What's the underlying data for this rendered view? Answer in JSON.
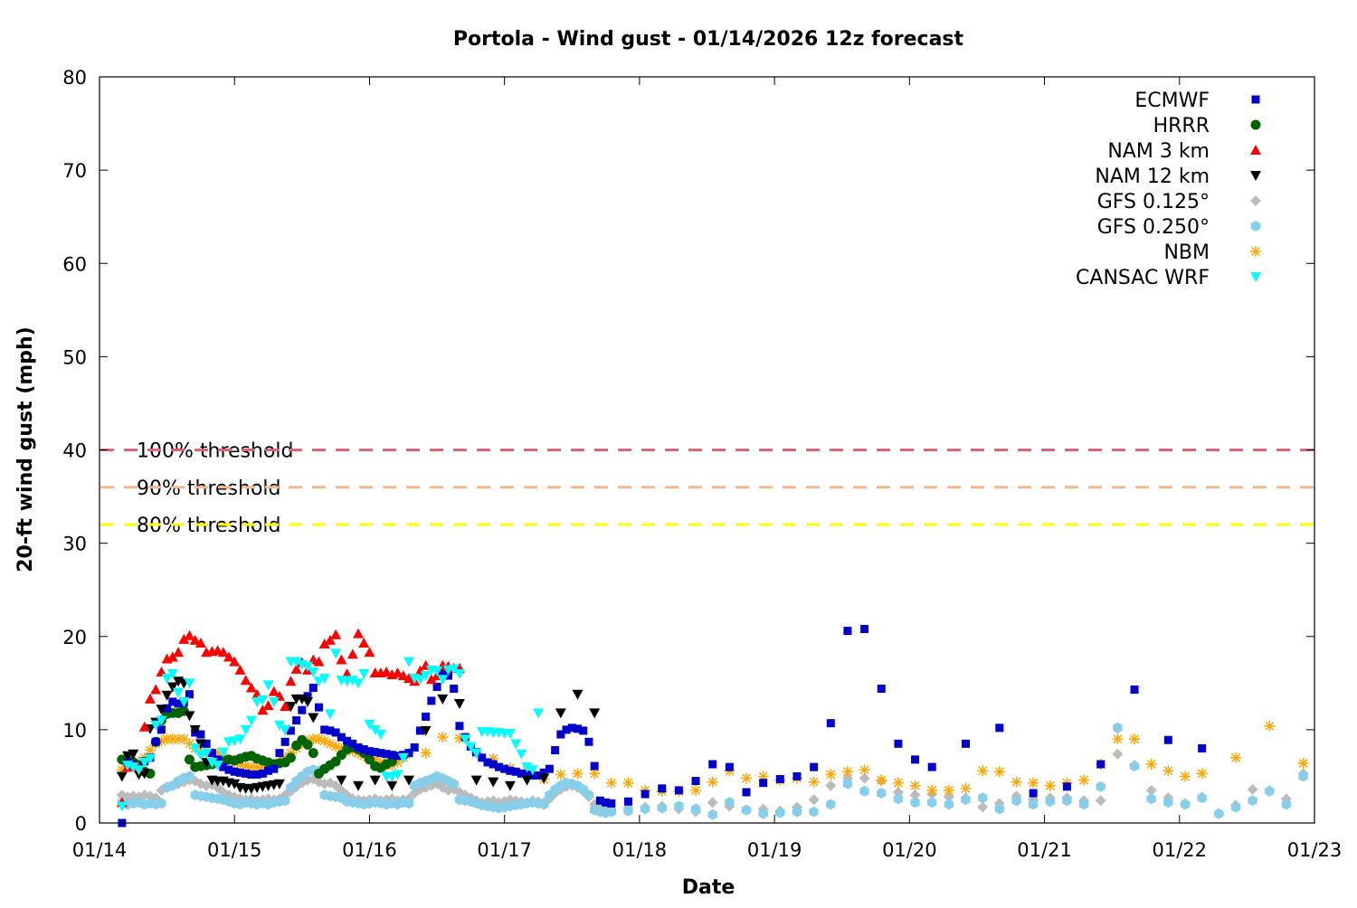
{
  "chart_data": {
    "type": "scatter",
    "title": "Portola - Wind gust - 01/14/2026 12z forecast",
    "xlabel": "Date",
    "ylabel": "20-ft wind gust (mph)",
    "xlim": [
      "01/14 00",
      "01/23 00"
    ],
    "ylim": [
      0,
      80
    ],
    "x_tick_labels": [
      "01/14",
      "01/15",
      "01/16",
      "01/17",
      "01/18",
      "01/19",
      "01/20",
      "01/21",
      "01/22",
      "01/23"
    ],
    "y_tick_labels": [
      "0",
      "10",
      "20",
      "30",
      "40",
      "50",
      "60",
      "70",
      "80"
    ],
    "legend_position": "top-right",
    "grid": false,
    "thresholds": [
      {
        "label": "100% threshold",
        "value": 40,
        "color": "#e06377"
      },
      {
        "label": "90% threshold",
        "value": 36,
        "color": "#f8b88b"
      },
      {
        "label": "80% threshold",
        "value": 32,
        "color": "#ffff00"
      }
    ],
    "series": [
      {
        "name": "ECMWF",
        "marker": "square",
        "color": "#0000cc",
        "segments": [
          {
            "start": "01/14 04",
            "step_hours": 1,
            "values": [
              0,
              6.5,
              6.3,
              6,
              6.6,
              7,
              8.7,
              10,
              12.3,
              13,
              12.8,
              12.9,
              13.8,
              9.7,
              9.5,
              8.5,
              7.5,
              6.8,
              6,
              5.7,
              5.5,
              5.4,
              5.3,
              5.2,
              5.2,
              5.3,
              5.6,
              5.8,
              7.5,
              8.7,
              9.9,
              11,
              12.1,
              13.6,
              14.5,
              12.4,
              10,
              9.9,
              9.7,
              9.2,
              8.8,
              8.5,
              8.1,
              7.9,
              7.7,
              7.6,
              7.5,
              7.4,
              7.3,
              7.2,
              7.3,
              7.5,
              8.1,
              9.9,
              11.4,
              13.1,
              14.6,
              16,
              15.8,
              14.4,
              10.4,
              9.2,
              8.2,
              7.6,
              7,
              6.5,
              6.3,
              6,
              5.8,
              5.6,
              5.5,
              5.3,
              5.2,
              5.1,
              5.1,
              5.4,
              5.8,
              7.8,
              9.5,
              10,
              10.2,
              10.1,
              9.9,
              8.7,
              6.1,
              2.4,
              2.2,
              2.1
            ]
          },
          {
            "start": "01/17 22",
            "step_hours": 3,
            "values": [
              2.3,
              3.1,
              3.7,
              3.5,
              4.5,
              6.3,
              6,
              3.3,
              4.3,
              4.7,
              5,
              6,
              10.7,
              20.6,
              20.8,
              14.4,
              8.5,
              6.8,
              6
            ]
          },
          {
            "start": "01/20 10",
            "step_hours": 6,
            "values": [
              8.5,
              10.2,
              3.2,
              3.9,
              6.3,
              14.3,
              8.9,
              8
            ]
          }
        ]
      },
      {
        "name": "HRRR",
        "marker": "circle",
        "color": "#006400",
        "segments": [
          {
            "start": "01/14 04",
            "step_hours": 1,
            "values": [
              6.8,
              6.8,
              6.5,
              6.2,
              5.5,
              5.3,
              8.7,
              11,
              11.7,
              11.8,
              11.8,
              12,
              6.8,
              6,
              6.1,
              6.2,
              6.3,
              6.4,
              6.7,
              6.8,
              6.7,
              6.9,
              7.1,
              7.2,
              6.9,
              6.7,
              6.5,
              6.3,
              6.4,
              6.5,
              7,
              8.3,
              8.9,
              8.4,
              7.5,
              5.3,
              5.8,
              6.2,
              6.6,
              7.3,
              7.9,
              8.1,
              7.9,
              7.5,
              6.8,
              6.1,
              5.9,
              6.3,
              6.6
            ]
          }
        ]
      },
      {
        "name": "NAM 3 km",
        "marker": "triangle-up",
        "color": "#ff0000",
        "segments": [
          {
            "start": "01/14 04",
            "step_hours": 1,
            "values": [
              2.2,
              6,
              6,
              6,
              10.3,
              13.3,
              14.3,
              16.2,
              17.6,
              17.8,
              18.3,
              19.7,
              20.1,
              19.6,
              19.3,
              18.3,
              18.4,
              18.5,
              18.3,
              17.8,
              17.3,
              16.4,
              15.3,
              14.5,
              13.8,
              12.1,
              12.6,
              14.1,
              13.6,
              12.5,
              15.2,
              16.5,
              17.2,
              16.4,
              17.5,
              17.3,
              19.2,
              19.6,
              20.2,
              17.5,
              16,
              18.1,
              20.3,
              19.3,
              18.3,
              16.1,
              16.1,
              16.2,
              15.9,
              16.1,
              15.8,
              15.5,
              15.2,
              16.3,
              16.9,
              15.4,
              15.8,
              16.9,
              16.8,
              16.6,
              16.6
            ]
          }
        ]
      },
      {
        "name": "NAM 12 km",
        "marker": "triangle-down",
        "color": "#000000",
        "segments": [
          {
            "start": "01/14 04",
            "step_hours": 1,
            "values": [
              5,
              7.2,
              7.4,
              5.2,
              5.3,
              10.1,
              10.8,
              12.2,
              13.7,
              14.6,
              15.2,
              15,
              11.5,
              10,
              8.5,
              6.5,
              4.6,
              4.5,
              4.5,
              4.3,
              4.2,
              3.8,
              3.7,
              3.7,
              3.8,
              3.9,
              4,
              4.1,
              4.2,
              10,
              12.5,
              13.3,
              13.3,
              13,
              11.3
            ]
          },
          {
            "start": "01/15 19",
            "step_hours": 3,
            "values": [
              4.6,
              4,
              4.6,
              4,
              4.6,
              9.9,
              13.3,
              12.8,
              4.6,
              4.4,
              4,
              4.6,
              4.8,
              11.8,
              13.8,
              11.8
            ]
          }
        ]
      },
      {
        "name": "GFS 0.125°",
        "marker": "diamond",
        "color": "#bbbbbb",
        "segments": [
          {
            "start": "01/14 04",
            "step_hours": 1,
            "values": [
              3,
              2.8,
              2.9,
              2.8,
              3,
              2.9,
              2.7,
              3.5,
              3.8,
              4,
              4.2,
              4.4,
              4.6,
              4.5,
              4.2,
              4,
              4.1,
              3.8,
              3.3,
              3,
              2.8,
              2.6,
              2.5,
              2.6,
              2.4,
              2.5,
              2.6,
              2.5,
              2.6,
              3,
              3.4,
              3.9,
              4.3,
              4.6,
              4.7,
              4.4,
              4.2,
              4.3,
              4,
              3.5,
              3,
              2.6,
              2.5,
              2.4,
              2.5,
              2.6,
              2.4,
              2.5,
              2.6,
              2.4,
              2.5,
              2.6,
              3.2,
              3.6,
              3.8,
              4,
              4.2,
              3.8,
              3.5,
              3.6,
              3.3,
              3,
              2.7,
              2.4,
              2.2,
              2.3,
              2.4,
              2.2,
              2.3,
              2.5,
              2.4,
              2.3,
              2.2,
              2.4,
              2.3,
              2.2,
              2.6,
              3.2,
              3.6,
              3.9,
              4,
              3.8,
              3.4,
              2.8,
              2,
              1.7,
              1.6,
              1.5
            ]
          },
          {
            "start": "01/17 22",
            "step_hours": 3,
            "values": [
              1.6,
              1.7,
              1.8,
              1.5,
              1.2,
              2.2,
              1.8,
              1.4,
              1.5,
              1.3,
              1.7,
              2.5,
              4,
              4.8,
              4.8,
              4.5,
              3.3,
              3,
              3.1,
              2.8,
              2.7,
              1.7,
              2.1,
              2.9,
              2.5,
              2.7,
              2.7,
              2.4,
              2.4,
              7.4,
              6.2,
              3.5,
              2.7,
              2.1,
              2.8,
              1,
              1.9,
              3.6,
              3.5,
              2.6,
              5.3
            ]
          }
        ]
      },
      {
        "name": "GFS 0.250°",
        "marker": "hexagon",
        "color": "#87ceeb",
        "segments": [
          {
            "start": "01/14 04",
            "step_hours": 1,
            "values": [
              2.2,
              2,
              2.1,
              2.2,
              2,
              2.1,
              2,
              2.1,
              3.8,
              4,
              4.5,
              4.8,
              5,
              3,
              2.9,
              2.8,
              2.7,
              2.6,
              2.5,
              2.3,
              2.1,
              2,
              2.2,
              2.1,
              2,
              2.1,
              2,
              2.2,
              2.3,
              2.4,
              3.8,
              4.5,
              5,
              5.5,
              5.7,
              5.6,
              3,
              2.9,
              2.8,
              2.7,
              2.3,
              2.2,
              2.1,
              2,
              2.1,
              2.2,
              2.1,
              2,
              2.1,
              2,
              2.2,
              2.1,
              4,
              4.3,
              4.5,
              4.7,
              5,
              4.8,
              4.5,
              4.2,
              2.5,
              2.4,
              2.3,
              2.1,
              1.9,
              1.8,
              1.7,
              1.6,
              1.7,
              1.8,
              1.9,
              2,
              2.1,
              2.2,
              2.1,
              2,
              3,
              3.6,
              4,
              4.3,
              4.2,
              4,
              3.6,
              3,
              1.4,
              1.2,
              1.1,
              1.2
            ]
          },
          {
            "start": "01/17 22",
            "step_hours": 3,
            "values": [
              1.3,
              1.5,
              1.6,
              1.8,
              1.5,
              0.9,
              2.2,
              1.4,
              1,
              1.1,
              1.2,
              1.2,
              2,
              4.2,
              3.4,
              3.2,
              2.6,
              2.2,
              2.2,
              2,
              2.5,
              2.7,
              1.5,
              2.4,
              2,
              2.3,
              2.4,
              2,
              3.9,
              10.2,
              6.1,
              2.6,
              2.2,
              2,
              2.7,
              1,
              1.7,
              2.4,
              3.4,
              2,
              5
            ]
          }
        ]
      },
      {
        "name": "NBM",
        "marker": "star",
        "color": "#ffa500",
        "segments": [
          {
            "start": "01/14 04",
            "step_hours": 1,
            "values": [
              5.7,
              6,
              6.3,
              6.6,
              7,
              7.8,
              8.5,
              8.8,
              9,
              9,
              9,
              9,
              8.5,
              8,
              7.7,
              7.5,
              7.5,
              7.5,
              7,
              6.7,
              6.5,
              6.3,
              6.1,
              6,
              6,
              6,
              6,
              6.2,
              6.5,
              7,
              7.5,
              8,
              8.5,
              8.8,
              9,
              9,
              8.8,
              8.5,
              8.2,
              8,
              7.8,
              7.7,
              7.5,
              7.2,
              7,
              6.8,
              6.5,
              6.2,
              6.2,
              6.5,
              7,
              7.5
            ]
          },
          {
            "start": "01/16 10",
            "step_hours": 3,
            "values": [
              7.5,
              9.2,
              9.1,
              7.5,
              6.9,
              5.9,
              5.6,
              4.7,
              5.2,
              5.3,
              5.3,
              4.3,
              4.3,
              3.5,
              3.4,
              3.4,
              3.5,
              4.4,
              5.6,
              4.8,
              5,
              4.6,
              4.8,
              4.4,
              5.2,
              5.5,
              5.7,
              4.6,
              4.3,
              4,
              3.5,
              3.5,
              3.7,
              5.6,
              5.5,
              4.4,
              4.3,
              4,
              4.3,
              4.6,
              6.3,
              9,
              9,
              6.3,
              5.6,
              5,
              5.3
            ]
          },
          {
            "start": "01/22 10",
            "step_hours": 6,
            "values": [
              7,
              10.4,
              6.4
            ]
          }
        ]
      },
      {
        "name": "CANSAC WRF",
        "marker": "triangle-down",
        "color": "#00ffff",
        "segments": [
          {
            "start": "01/14 04",
            "step_hours": 1,
            "values": [
              1.8,
              6.2,
              6,
              5.7,
              6.5,
              6.9,
              10.5,
              11,
              15.5,
              16,
              14,
              13,
              15,
              8,
              7.3,
              7.5,
              6.5,
              6.2,
              7.6,
              8.7,
              8.8,
              9,
              10,
              11,
              13,
              13.2,
              14.8,
              13,
              10.5,
              10,
              17.3,
              17.3,
              17,
              16.8,
              16.2,
              15.2,
              15.5,
              11.7,
              18.2,
              15.3,
              15.2,
              15.3,
              15,
              16,
              10.6,
              10,
              9.5,
              5,
              5,
              5.2,
              7,
              17.3,
              15.5,
              15.4,
              15.8,
              16.4,
              16.3,
              15.4,
              16.4,
              16.5,
              16,
              9,
              8.2,
              7.5,
              9.8,
              9.8,
              9.7,
              9.7,
              9.6,
              9.6,
              8.5,
              7.4,
              6,
              5.7,
              11.8
            ]
          }
        ]
      }
    ]
  }
}
